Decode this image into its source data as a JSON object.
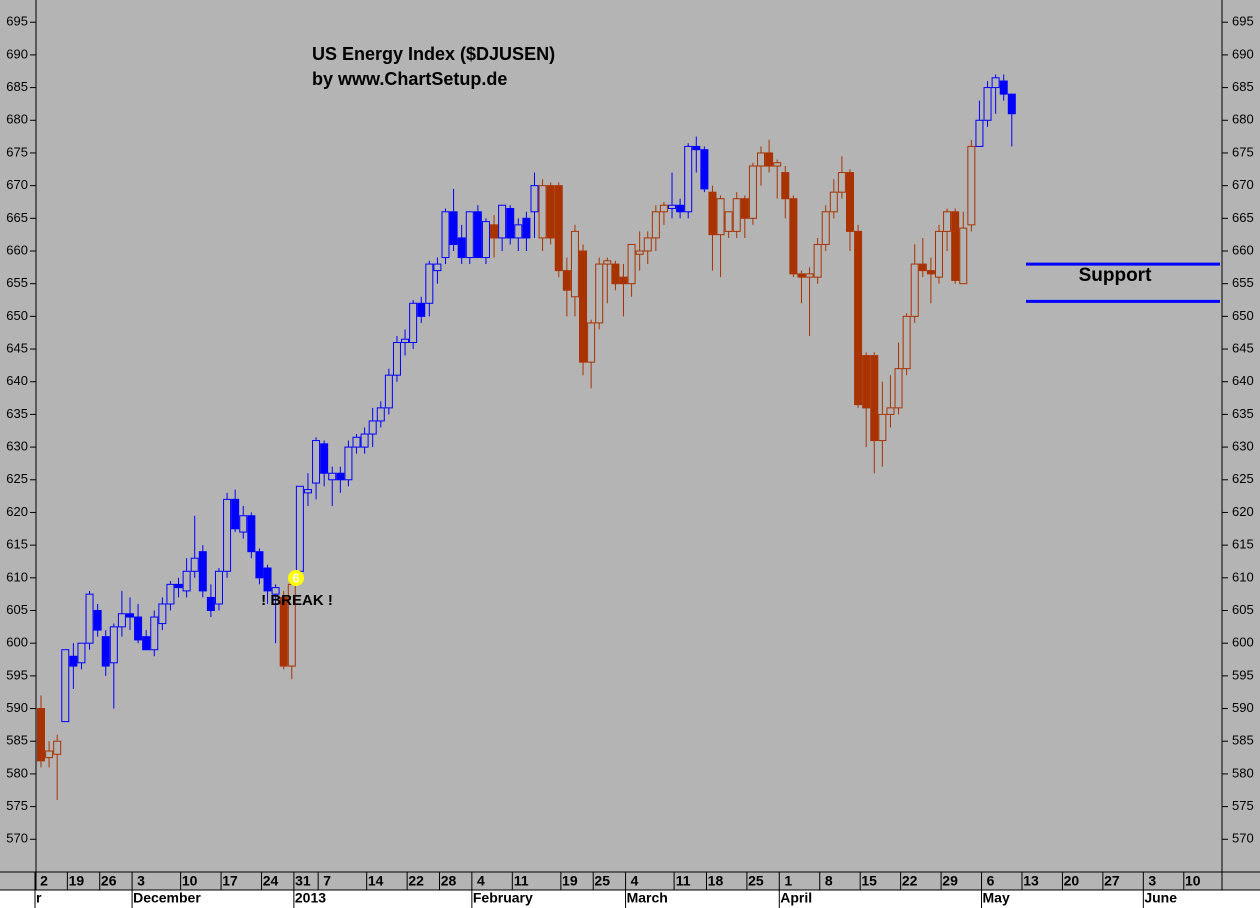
{
  "chart_data": {
    "type": "candlestick",
    "title": "US Energy Index ($DJUSEN)",
    "subtitle": "by www.ChartSetup.de",
    "annotations": [
      "! BREAK !"
    ],
    "break_marker": "6",
    "support_label": "Support",
    "support_lines": [
      658,
      652.3
    ],
    "support_color": "#0000ff",
    "ylim": [
      565.3,
      698.4
    ],
    "yticks": [
      570,
      575,
      580,
      585,
      590,
      595,
      600,
      605,
      610,
      615,
      620,
      625,
      630,
      635,
      640,
      645,
      650,
      655,
      660,
      665,
      670,
      675,
      680,
      685,
      690,
      695
    ],
    "categories": [
      "2",
      null,
      null,
      null,
      "19",
      null,
      null,
      null,
      "26",
      null,
      null,
      null,
      "3",
      null,
      null,
      null,
      null,
      null,
      "10",
      null,
      null,
      null,
      null,
      "17",
      null,
      null,
      null,
      null,
      "24",
      null,
      null,
      null,
      "31",
      null,
      null,
      "7",
      null,
      null,
      null,
      null,
      null,
      "14",
      null,
      null,
      null,
      null,
      "22",
      null,
      null,
      null,
      "28",
      null,
      null,
      null,
      "4",
      null,
      null,
      null,
      null,
      "11",
      null,
      null,
      null,
      null,
      null,
      "19",
      null,
      null,
      null,
      "25",
      null,
      null,
      null,
      "4",
      null,
      null,
      null,
      null,
      null,
      "11",
      null,
      null,
      null,
      "18",
      null,
      null,
      null,
      null,
      "25",
      null,
      null,
      null,
      "1",
      null,
      null,
      null,
      null,
      "8",
      null,
      null,
      null,
      null,
      "15",
      null,
      null,
      null,
      null,
      "22",
      null,
      null,
      null,
      null,
      "29",
      null,
      null,
      null,
      null,
      "6",
      null,
      null,
      null,
      null,
      "13",
      null,
      null,
      null,
      null,
      "20",
      null,
      null,
      null,
      null,
      "27",
      null,
      null,
      null,
      null,
      "3",
      null,
      null,
      null,
      null,
      "10",
      null,
      null,
      null,
      null
    ],
    "months": [
      "r",
      null,
      null,
      null,
      null,
      null,
      null,
      null,
      null,
      null,
      null,
      null,
      "December",
      null,
      null,
      null,
      null,
      null,
      null,
      null,
      null,
      null,
      null,
      null,
      null,
      null,
      null,
      null,
      null,
      null,
      null,
      null,
      "2013",
      null,
      null,
      null,
      null,
      null,
      null,
      null,
      null,
      null,
      null,
      null,
      null,
      null,
      null,
      null,
      null,
      null,
      null,
      null,
      null,
      null,
      "February",
      null,
      null,
      null,
      null,
      null,
      null,
      null,
      null,
      null,
      null,
      null,
      null,
      null,
      null,
      null,
      null,
      null,
      null,
      "March",
      null,
      null,
      null,
      null,
      null,
      null,
      null,
      null,
      null,
      null,
      null,
      null,
      null,
      null,
      null,
      null,
      null,
      null,
      "April",
      null,
      null,
      null,
      null,
      null,
      null,
      null,
      null,
      null,
      null,
      null,
      null,
      null,
      null,
      null,
      null,
      null,
      null,
      null,
      null,
      null,
      null,
      null,
      null,
      "May",
      null,
      null,
      null,
      null,
      null,
      null,
      null,
      null,
      null,
      null,
      null,
      null,
      null,
      null,
      null,
      null,
      null,
      null,
      null,
      "June",
      null,
      null,
      null,
      null,
      null,
      null,
      null,
      null,
      null
    ],
    "open": [
      590,
      582.5,
      583,
      588,
      598,
      597,
      600,
      605,
      601,
      597,
      602.5,
      604.5,
      604,
      601,
      599,
      603,
      606,
      609,
      608,
      611,
      614,
      607,
      606,
      611,
      622,
      617,
      619.5,
      614,
      611.5,
      607.5,
      607,
      596.5,
      611,
      623,
      624.5,
      630.5,
      625,
      626,
      625,
      630,
      630,
      632,
      634,
      636,
      641,
      646,
      646,
      652,
      652,
      657,
      659,
      666,
      662,
      659,
      666,
      659,
      664,
      662,
      666.5,
      662,
      665,
      666,
      662,
      670,
      670,
      657,
      653,
      660,
      643,
      649,
      658,
      658,
      656,
      655,
      659.5,
      660,
      662,
      666,
      666.5,
      667,
      666,
      676,
      675.5,
      669,
      662.5,
      663,
      663,
      668,
      665,
      673,
      675,
      673,
      672,
      668,
      656.5,
      656,
      656,
      661,
      666,
      669,
      672,
      663,
      644,
      644,
      631,
      635,
      636,
      642,
      650,
      658,
      657,
      656,
      663,
      666,
      655,
      664,
      676,
      680,
      685,
      686,
      684,
      null,
      null,
      null,
      null,
      null,
      null,
      null,
      null,
      null,
      null,
      null,
      null,
      null,
      null,
      null,
      null,
      null,
      null,
      null,
      null,
      null,
      null,
      null,
      null,
      null,
      null
    ],
    "high": [
      592,
      585,
      586,
      599,
      600,
      600,
      608,
      606,
      602,
      603,
      608,
      607,
      606,
      602,
      605,
      607,
      609.5,
      610,
      613,
      619.5,
      615,
      609,
      611.5,
      623,
      623.5,
      621,
      620,
      614.5,
      612,
      609,
      608,
      609,
      624,
      626,
      631.5,
      631,
      627,
      627,
      631,
      632,
      633,
      636,
      637,
      642,
      647,
      648,
      652.5,
      653,
      658.5,
      659,
      666.5,
      669.5,
      664,
      666,
      667,
      665,
      665.5,
      667,
      667,
      665,
      666,
      672,
      671,
      670.5,
      670.5,
      659,
      664,
      661,
      649.5,
      659,
      659,
      658.5,
      658,
      661,
      663,
      663,
      667,
      667.5,
      672,
      668,
      676.5,
      677.5,
      676,
      670,
      668.5,
      666,
      669,
      668.5,
      673.5,
      676,
      677,
      674,
      673,
      668.5,
      657,
      657.5,
      662,
      667,
      671,
      674.5,
      672.5,
      664,
      644.5,
      644.5,
      640,
      641,
      646,
      650.5,
      661,
      662,
      659,
      664,
      666.5,
      666.5,
      666,
      677,
      683,
      686,
      687,
      687,
      684,
      null,
      null,
      null,
      null,
      null,
      null,
      null,
      null,
      null,
      null,
      null,
      null,
      null,
      null,
      null,
      null,
      null,
      null,
      null,
      null,
      null,
      null,
      null,
      null,
      null,
      null
    ],
    "low": [
      581,
      581,
      576,
      588,
      593,
      596,
      599,
      601,
      595,
      590,
      601,
      602,
      600,
      599,
      598,
      602,
      605,
      607,
      607,
      610,
      607,
      604,
      605,
      610,
      617,
      616,
      613,
      609,
      606,
      600,
      596,
      594.5,
      611,
      621,
      622,
      624,
      621,
      623,
      624,
      629,
      629,
      630,
      633,
      635,
      640,
      644,
      645,
      649,
      650,
      655,
      658,
      660,
      658,
      658,
      659,
      658,
      659,
      660,
      661,
      660,
      660,
      662,
      660,
      661,
      656,
      650,
      650,
      641,
      639,
      648,
      652,
      654,
      650,
      653,
      657,
      658,
      660,
      664,
      665,
      665,
      665,
      672,
      669,
      657,
      656,
      662,
      662,
      662,
      664,
      670,
      672,
      668,
      665,
      656,
      652,
      647,
      655,
      660,
      665,
      668,
      660,
      636,
      630,
      626,
      627,
      633,
      635,
      641,
      649,
      656,
      652,
      655,
      660,
      655,
      655,
      663,
      676,
      679,
      681,
      683,
      676,
      null,
      null,
      null,
      null,
      null,
      null,
      null,
      null,
      null,
      null,
      null,
      null,
      null,
      null,
      null,
      null,
      null,
      null,
      null,
      null,
      null,
      null,
      null,
      null,
      null,
      null
    ],
    "close": [
      582,
      583.5,
      585,
      599,
      596.5,
      600,
      607.5,
      602,
      596.5,
      602.5,
      604.5,
      604,
      600.5,
      599,
      604,
      606,
      609,
      608.5,
      611,
      613,
      608,
      605,
      611,
      622,
      617.5,
      619.5,
      614,
      610,
      608,
      608.5,
      596.5,
      609,
      624,
      623.5,
      631,
      626,
      626,
      625,
      630,
      631.5,
      632,
      634,
      636,
      641,
      646,
      646.5,
      652,
      650,
      658,
      658,
      666,
      661,
      659,
      666,
      659,
      664.5,
      662,
      667,
      662,
      664,
      662,
      670,
      670,
      662,
      657,
      654,
      663,
      643,
      649,
      658,
      658.5,
      655,
      655,
      661,
      660,
      662,
      666,
      667,
      667,
      666,
      676,
      675.5,
      669.5,
      662.5,
      668,
      666,
      668,
      665,
      673,
      675,
      673,
      673.5,
      668,
      656.5,
      656,
      656.5,
      661,
      666,
      669,
      672,
      663,
      636.5,
      636,
      631,
      635,
      636,
      642,
      650,
      658,
      657,
      656.5,
      663,
      666,
      655.5,
      663.5,
      676,
      680,
      685,
      686.5,
      684,
      681,
      null,
      null,
      null,
      null,
      null,
      null,
      null,
      null,
      null,
      null,
      null,
      null,
      null,
      null,
      null,
      null,
      null,
      null,
      null,
      null,
      null,
      null,
      null,
      null,
      null,
      null
    ],
    "colors": [
      "#a83200",
      "#a83200",
      "#a83200",
      "#0000ff",
      "#0000ff",
      "#0000ff",
      "#0000ff",
      "#0000ff",
      "#0000ff",
      "#0000ff",
      "#0000ff",
      "#0000ff",
      "#0000ff",
      "#0000ff",
      "#0000ff",
      "#0000ff",
      "#0000ff",
      "#0000ff",
      "#0000ff",
      "#0000ff",
      "#0000ff",
      "#0000ff",
      "#0000ff",
      "#0000ff",
      "#0000ff",
      "#0000ff",
      "#0000ff",
      "#0000ff",
      "#0000ff",
      "#0000ff",
      "#a83200",
      "#a83200",
      "#0000ff",
      "#0000ff",
      "#0000ff",
      "#0000ff",
      "#0000ff",
      "#0000ff",
      "#0000ff",
      "#0000ff",
      "#0000ff",
      "#0000ff",
      "#0000ff",
      "#0000ff",
      "#0000ff",
      "#0000ff",
      "#0000ff",
      "#0000ff",
      "#0000ff",
      "#0000ff",
      "#0000ff",
      "#0000ff",
      "#0000ff",
      "#0000ff",
      "#0000ff",
      "#0000ff",
      "#a83200",
      "#0000ff",
      "#0000ff",
      "#0000ff",
      "#0000ff",
      "#0000ff",
      "#a83200",
      "#a83200",
      "#a83200",
      "#a83200",
      "#a83200",
      "#a83200",
      "#a83200",
      "#a83200",
      "#a83200",
      "#a83200",
      "#a83200",
      "#a83200",
      "#a83200",
      "#a83200",
      "#a83200",
      "#a83200",
      "#0000ff",
      "#0000ff",
      "#0000ff",
      "#0000ff",
      "#0000ff",
      "#a83200",
      "#a83200",
      "#a83200",
      "#a83200",
      "#a83200",
      "#a83200",
      "#a83200",
      "#a83200",
      "#a83200",
      "#a83200",
      "#a83200",
      "#a83200",
      "#a83200",
      "#a83200",
      "#a83200",
      "#a83200",
      "#a83200",
      "#a83200",
      "#a83200",
      "#a83200",
      "#a83200",
      "#a83200",
      "#a83200",
      "#a83200",
      "#a83200",
      "#a83200",
      "#a83200",
      "#a83200",
      "#a83200",
      "#a83200",
      "#a83200",
      "#a83200",
      "#a83200",
      "#0000ff",
      "#0000ff",
      "#0000ff",
      "#0000ff",
      "#0000ff",
      null,
      null,
      null,
      null,
      null,
      null,
      null,
      null,
      null,
      null,
      null,
      null,
      null,
      null,
      null,
      null,
      null,
      null,
      null,
      null,
      null,
      null,
      null,
      null,
      null,
      null
    ]
  }
}
